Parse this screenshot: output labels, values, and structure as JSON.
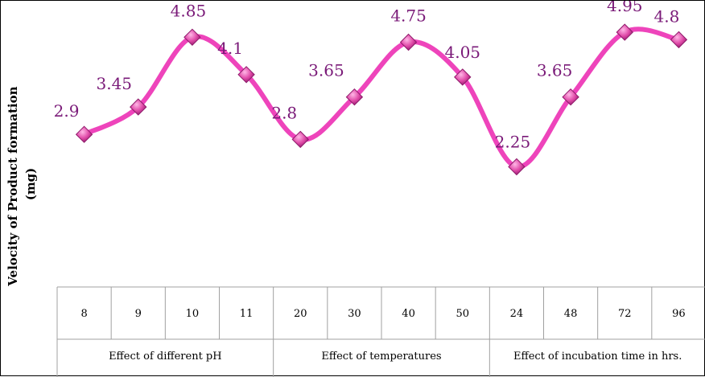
{
  "chart_data": {
    "type": "line",
    "ylabel": "Velocity of Product formation (mg)",
    "ylabel_lines": [
      "Velocity of Product formation",
      "(mg)"
    ],
    "categories": [
      "8",
      "9",
      "10",
      "11",
      "20",
      "30",
      "40",
      "50",
      "24",
      "48",
      "72",
      "96"
    ],
    "groups": [
      {
        "label": "Effect of different pH",
        "count": 4
      },
      {
        "label": "Effect of temperatures",
        "count": 4
      },
      {
        "label": "Effect of incubation time in hrs.",
        "count": 4
      }
    ],
    "values": [
      2.9,
      3.45,
      4.85,
      4.1,
      2.8,
      3.65,
      4.75,
      4.05,
      2.25,
      3.65,
      4.95,
      4.8
    ],
    "data_labels": [
      "2.9",
      "3.45",
      "4.85",
      "4.1",
      "2.8",
      "3.65",
      "4.75",
      "4.05",
      "2.25",
      "3.65",
      "4.95",
      "4.8"
    ],
    "ylim": [
      0,
      5.5
    ],
    "grid": false,
    "legend": "none",
    "line_color": "#ee44bb",
    "marker_color": "#d63a9e",
    "label_color": "#7a1a78"
  }
}
